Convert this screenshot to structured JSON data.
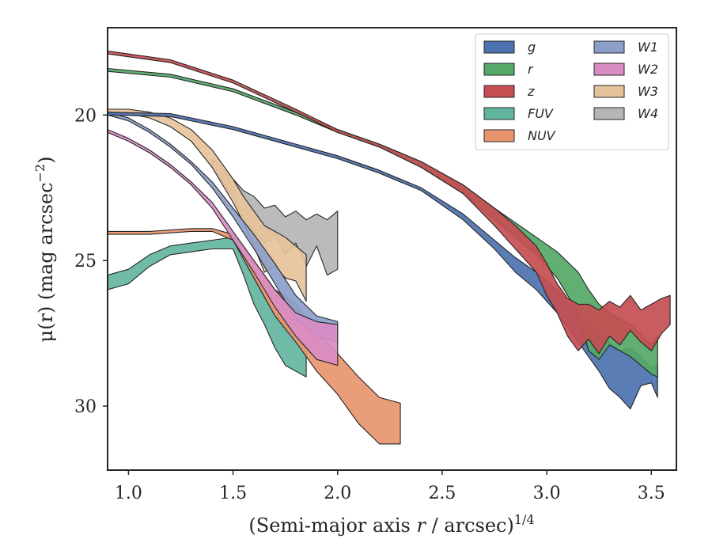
{
  "chart_data": {
    "type": "area",
    "xlabel": "(Semi-major axis r / arcsec)",
    "xlabel_var": "r",
    "xlabel_sup": "1/4",
    "ylabel": "μ(r) (mag arcsec",
    "ylabel_sup": "−2",
    "ylabel_close": ")",
    "xlim": [
      0.9,
      3.62
    ],
    "ylim": [
      32.2,
      17.0
    ],
    "y_inverted": true,
    "xticks": [
      1.0,
      1.5,
      2.0,
      2.5,
      3.0,
      3.5
    ],
    "xtick_labels": [
      "1.0",
      "1.5",
      "2.0",
      "2.5",
      "3.0",
      "3.5"
    ],
    "yticks": [
      20,
      25,
      30
    ],
    "ytick_labels": [
      "20",
      "25",
      "30"
    ],
    "grid": false,
    "legend": {
      "placement": "top-right",
      "columns": 2
    },
    "series": [
      {
        "name": "g",
        "color": "#4c72b0",
        "x": [
          0.9,
          1.2,
          1.5,
          1.8,
          2.0,
          2.2,
          2.4,
          2.6,
          2.75,
          2.85,
          2.95,
          3.05,
          3.15,
          3.25,
          3.3,
          3.35,
          3.4,
          3.45,
          3.5,
          3.53
        ],
        "lo": [
          19.9,
          19.95,
          20.4,
          21.0,
          21.4,
          21.9,
          22.5,
          23.4,
          24.3,
          24.9,
          25.4,
          26.0,
          26.8,
          27.3,
          27.8,
          28.1,
          28.0,
          28.3,
          28.7,
          28.6
        ],
        "hi": [
          20.0,
          20.05,
          20.5,
          21.1,
          21.5,
          22.0,
          22.6,
          23.6,
          24.6,
          25.4,
          26.0,
          26.8,
          27.8,
          28.8,
          29.4,
          29.7,
          30.1,
          29.3,
          29.2,
          29.7
        ]
      },
      {
        "name": "r",
        "color": "#55a868",
        "x": [
          0.9,
          1.2,
          1.5,
          1.8,
          2.0,
          2.2,
          2.4,
          2.6,
          2.75,
          2.85,
          2.95,
          3.05,
          3.15,
          3.2,
          3.25,
          3.3,
          3.4,
          3.5,
          3.53
        ],
        "lo": [
          18.4,
          18.6,
          19.1,
          19.9,
          20.5,
          21.0,
          21.6,
          22.4,
          23.2,
          23.7,
          24.2,
          24.7,
          25.4,
          26.0,
          26.5,
          26.8,
          27.2,
          27.9,
          27.6
        ],
        "hi": [
          18.5,
          18.7,
          19.2,
          20.0,
          20.6,
          21.1,
          21.8,
          22.7,
          23.6,
          24.2,
          24.8,
          25.6,
          26.8,
          28.1,
          28.4,
          27.9,
          28.3,
          28.9,
          29.0
        ]
      },
      {
        "name": "z",
        "color": "#c44e52",
        "x": [
          0.9,
          1.2,
          1.5,
          1.8,
          2.0,
          2.2,
          2.4,
          2.6,
          2.75,
          2.85,
          2.95,
          3.0,
          3.05,
          3.1,
          3.15,
          3.2,
          3.25,
          3.3,
          3.35,
          3.4,
          3.45,
          3.5,
          3.55,
          3.59
        ],
        "lo": [
          17.8,
          18.1,
          18.8,
          19.8,
          20.5,
          21.0,
          21.6,
          22.4,
          23.2,
          23.8,
          24.5,
          25.1,
          25.8,
          26.3,
          26.5,
          26.5,
          26.7,
          26.4,
          26.6,
          26.2,
          26.7,
          26.5,
          26.3,
          26.2
        ],
        "hi": [
          17.9,
          18.2,
          18.9,
          19.9,
          20.6,
          21.1,
          21.8,
          22.7,
          23.8,
          24.6,
          25.4,
          26.2,
          26.8,
          27.6,
          28.1,
          27.7,
          28.2,
          27.6,
          27.9,
          27.4,
          27.8,
          28.1,
          27.5,
          27.2
        ]
      },
      {
        "name": "FUV",
        "color": "#64b5a0",
        "x": [
          0.9,
          1.0,
          1.1,
          1.2,
          1.3,
          1.4,
          1.5,
          1.55,
          1.6,
          1.65,
          1.7,
          1.75,
          1.8,
          1.85
        ],
        "lo": [
          25.5,
          25.3,
          24.8,
          24.5,
          24.4,
          24.3,
          24.2,
          24.8,
          25.5,
          26.2,
          26.8,
          27.2,
          27.5,
          27.8
        ],
        "hi": [
          26.0,
          25.8,
          25.2,
          24.8,
          24.7,
          24.6,
          24.6,
          25.5,
          26.5,
          27.2,
          28.0,
          28.6,
          28.8,
          29.0
        ]
      },
      {
        "name": "NUV",
        "color": "#e8956e",
        "x": [
          0.9,
          1.1,
          1.3,
          1.4,
          1.5,
          1.6,
          1.7,
          1.8,
          1.9,
          2.0,
          2.1,
          2.2,
          2.3
        ],
        "lo": [
          24.0,
          24.0,
          23.9,
          23.9,
          24.1,
          25.0,
          26.0,
          26.5,
          27.5,
          28.2,
          29.0,
          29.7,
          29.9
        ],
        "hi": [
          24.1,
          24.1,
          24.0,
          24.0,
          24.3,
          25.6,
          26.9,
          27.8,
          28.8,
          29.6,
          30.6,
          31.3,
          31.3
        ]
      },
      {
        "name": "W1",
        "color": "#8c9fca",
        "x": [
          0.9,
          1.0,
          1.1,
          1.2,
          1.3,
          1.4,
          1.5,
          1.6,
          1.7,
          1.8,
          1.9,
          2.0
        ],
        "lo": [
          19.9,
          20.1,
          20.5,
          21.0,
          21.6,
          22.3,
          23.2,
          24.1,
          25.1,
          26.2,
          26.9,
          27.1
        ],
        "hi": [
          20.0,
          20.2,
          20.6,
          21.1,
          21.7,
          22.5,
          23.5,
          24.6,
          25.8,
          27.0,
          27.6,
          27.8
        ]
      },
      {
        "name": "W2",
        "color": "#d98cc4",
        "x": [
          0.9,
          1.0,
          1.1,
          1.2,
          1.3,
          1.4,
          1.5,
          1.6,
          1.7,
          1.8,
          1.9,
          2.0
        ],
        "lo": [
          20.5,
          20.8,
          21.2,
          21.7,
          22.3,
          23.0,
          24.0,
          25.0,
          26.0,
          26.8,
          27.1,
          27.2
        ],
        "hi": [
          20.6,
          20.9,
          21.3,
          21.8,
          22.4,
          23.2,
          24.3,
          25.4,
          26.6,
          27.6,
          28.4,
          28.6
        ]
      },
      {
        "name": "W3",
        "color": "#e6c29a",
        "x": [
          0.9,
          1.0,
          1.1,
          1.2,
          1.3,
          1.4,
          1.5,
          1.55,
          1.6,
          1.65,
          1.7,
          1.75,
          1.8,
          1.85
        ],
        "lo": [
          19.8,
          19.8,
          19.9,
          20.1,
          20.5,
          21.2,
          22.2,
          22.8,
          23.3,
          23.8,
          24.0,
          24.2,
          24.5,
          24.8
        ],
        "hi": [
          19.9,
          19.95,
          20.1,
          20.4,
          20.9,
          21.8,
          23.0,
          23.7,
          24.5,
          25.4,
          25.2,
          25.6,
          25.7,
          26.4
        ]
      },
      {
        "name": "W4",
        "color": "#b5b5b5",
        "x": [
          1.4,
          1.5,
          1.55,
          1.6,
          1.65,
          1.7,
          1.75,
          1.8,
          1.85,
          1.9,
          1.95,
          2.0
        ],
        "lo": [
          21.5,
          22.2,
          22.6,
          22.8,
          23.2,
          23.1,
          23.5,
          23.3,
          23.6,
          23.4,
          23.6,
          23.3
        ],
        "hi": [
          21.8,
          22.8,
          23.5,
          24.0,
          24.4,
          24.1,
          24.8,
          24.4,
          25.2,
          24.5,
          25.5,
          25.3
        ]
      }
    ]
  }
}
